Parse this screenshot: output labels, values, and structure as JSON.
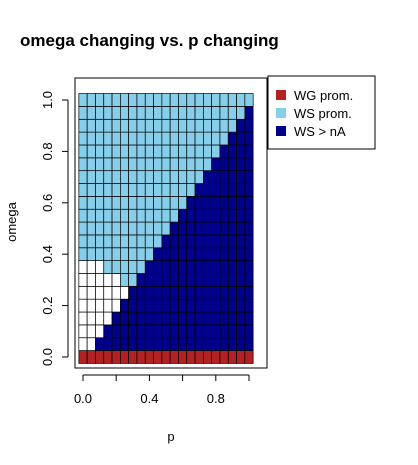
{
  "chart_data": {
    "type": "heatmap",
    "title": "omega changing vs. p changing",
    "xlabel": "p",
    "ylabel": "omega",
    "xlim": [
      0.0,
      1.0
    ],
    "ylim": [
      0.0,
      1.0
    ],
    "x_ticks": [
      0.0,
      0.2,
      0.4,
      0.6,
      0.8,
      1.0
    ],
    "x_tick_labels": [
      "0.0",
      "",
      "0.4",
      "",
      "0.8",
      ""
    ],
    "y_ticks": [
      0.0,
      0.2,
      0.4,
      0.6,
      0.8,
      1.0
    ],
    "y_tick_labels": [
      "0.0",
      "0.2",
      "0.4",
      "0.6",
      "0.8",
      "1.0"
    ],
    "p_values": [
      0.0,
      0.05,
      0.1,
      0.15,
      0.2,
      0.25,
      0.3,
      0.35,
      0.4,
      0.45,
      0.5,
      0.55,
      0.6,
      0.65,
      0.7,
      0.75,
      0.8,
      0.85,
      0.9,
      0.95,
      1.0
    ],
    "omega_values": [
      0.0,
      0.05,
      0.1,
      0.15,
      0.2,
      0.25,
      0.3,
      0.35,
      0.4,
      0.45,
      0.5,
      0.55,
      0.6,
      0.65,
      0.7,
      0.75,
      0.8,
      0.85,
      0.9,
      0.95,
      1.0
    ],
    "region_rule": "omega = 0 -> WG prom.; otherwise WS > nA where omega < 1.05*(p - 0.05); otherwise WS prom. where omega >= 0.4 - 0.2*p/0.45; otherwise no category (white)",
    "categories": [
      {
        "name": "WG prom.",
        "color": "#b22222"
      },
      {
        "name": "WS prom.",
        "color": "#87ceeb"
      },
      {
        "name": "WS > nA",
        "color": "#00008b"
      }
    ],
    "empty_color": "#ffffff",
    "grid_line_color": "#000000",
    "legend_placement": "top-right"
  }
}
